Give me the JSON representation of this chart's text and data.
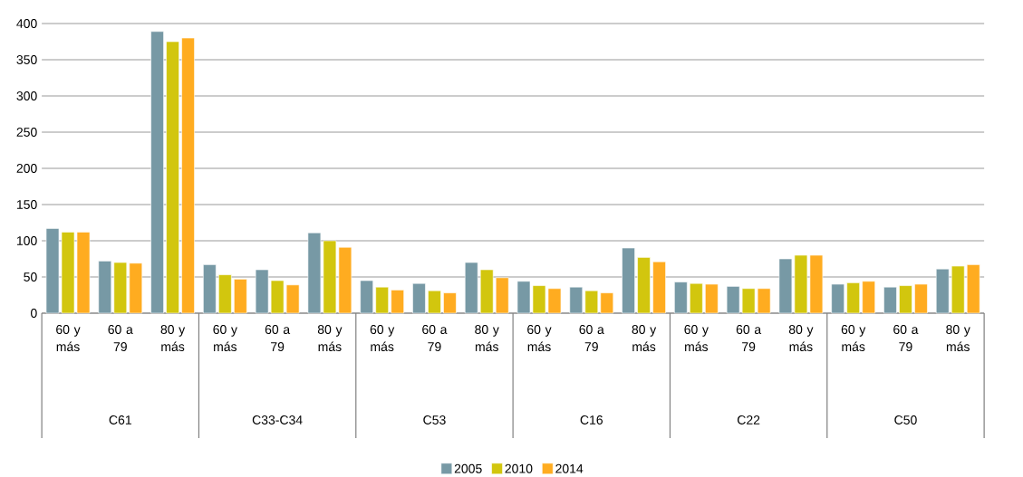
{
  "chart_data": {
    "type": "bar",
    "categories": [
      "60 y más",
      "60 a 79",
      "80 y más",
      "60 y más",
      "60 a 79",
      "80 y más",
      "60 y más",
      "60 a 79",
      "80 y más",
      "60 y más",
      "60 a 79",
      "80 y más",
      "60 y más",
      "60 a 79",
      "80 y más",
      "60 y más",
      "60 a 79",
      "80 y más"
    ],
    "annotations": [
      "C61",
      "C33-C34",
      "C53",
      "C16",
      "C22",
      "C50"
    ],
    "series": [
      {
        "name": "2005",
        "color": "#7799a5",
        "values": [
          117,
          72,
          389,
          67,
          60,
          111,
          45,
          41,
          70,
          44,
          36,
          90,
          43,
          37,
          75,
          40,
          36,
          61
        ]
      },
      {
        "name": "2010",
        "color": "#d2c60e",
        "values": [
          112,
          70,
          375,
          53,
          45,
          100,
          36,
          31,
          60,
          38,
          31,
          77,
          41,
          34,
          80,
          42,
          38,
          65
        ]
      },
      {
        "name": "2014",
        "color": "#ffac20",
        "values": [
          112,
          69,
          380,
          47,
          39,
          91,
          32,
          28,
          49,
          34,
          28,
          71,
          40,
          34,
          80,
          44,
          40,
          67
        ]
      }
    ],
    "ylim": [
      0,
      400
    ],
    "yticks": [
      0,
      50,
      100,
      150,
      200,
      250,
      300,
      350,
      400
    ],
    "grid": "y",
    "legend": "bottom"
  }
}
